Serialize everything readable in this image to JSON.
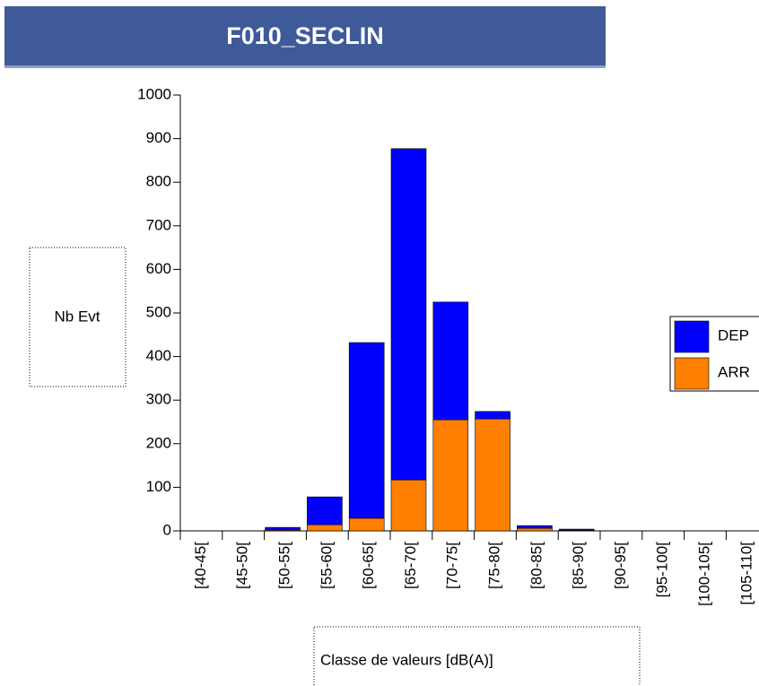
{
  "chart_data": {
    "type": "stacked_bar",
    "title": "F010_SECLIN",
    "ylabel": "Nb Evt",
    "xlabel": "Classe de valeurs [dB(A)]",
    "categories": [
      "[40-45[",
      "[45-50[",
      "[50-55[",
      "[55-60[",
      "[60-65[",
      "[65-70[",
      "[70-75[",
      "[75-80[",
      "[80-85[",
      "[85-90[",
      "[90-95[",
      "[95-100[",
      "[100-105[",
      "[105-110["
    ],
    "series": [
      {
        "name": "DEP",
        "color": "#0000ff",
        "values": [
          0,
          0,
          6,
          64,
          403,
          760,
          270,
          17,
          6,
          3,
          0,
          0,
          0,
          0
        ]
      },
      {
        "name": "ARR",
        "color": "#ff7f00",
        "values": [
          0,
          0,
          2,
          14,
          29,
          117,
          255,
          257,
          6,
          1,
          0,
          0,
          0,
          0
        ]
      }
    ],
    "ylim": [
      0,
      1000
    ],
    "yticks": [
      0,
      100,
      200,
      300,
      400,
      500,
      600,
      700,
      800,
      900,
      1000
    ]
  }
}
